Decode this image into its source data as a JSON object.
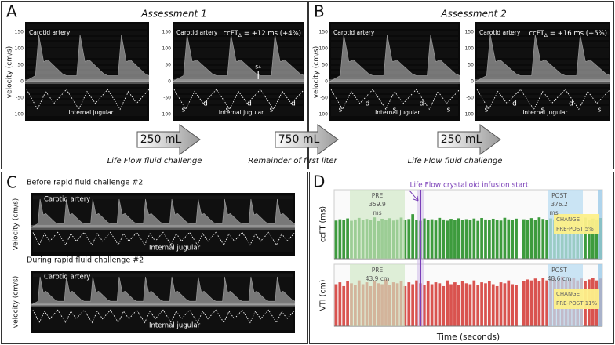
{
  "panel_a": {
    "letter": "A",
    "title": "Assessment 1",
    "left_image": {
      "vessel_top": "Carotid artery",
      "vessel_bottom": "Internal jugular"
    },
    "right_image": {
      "vessel_top": "Carotid artery",
      "vessel_bottom": "Internal jugular",
      "ccft": {
        "symbol": "ccFT",
        "subscript": "Δ",
        "change": "= +12 ms (+4%)"
      },
      "wave_labels": [
        "s",
        "d",
        "s",
        "d",
        "s",
        "d"
      ],
      "marker": "S4"
    }
  },
  "panel_b": {
    "letter": "B",
    "title": "Assessment 2",
    "left_image": {
      "vessel_top": "Carotid artery",
      "vessel_bottom": "Internal jugular",
      "wave_labels": [
        "s",
        "d",
        "s",
        "d",
        "s"
      ]
    },
    "right_image": {
      "vessel_top": "Carotid artery",
      "vessel_bottom": "Internal jugular",
      "ccft": {
        "symbol": "ccFT",
        "subscript": "Δ",
        "change": "= +16 ms (+5%)"
      },
      "wave_labels": [
        "s",
        "d",
        "s",
        "d",
        "s"
      ]
    }
  },
  "velocity_axis": {
    "label": "velocity (cm/s)",
    "ticks": [
      150,
      100,
      50,
      0,
      -50,
      -100
    ]
  },
  "steps": [
    {
      "volume": "250 mL",
      "caption": "Life Flow fluid challenge"
    },
    {
      "volume": "750 mL",
      "caption": "Remainder of first liter"
    },
    {
      "volume": "250 mL",
      "caption": "Life Flow fluid challenge"
    }
  ],
  "panel_c": {
    "letter": "C",
    "axis_label": "Velocity (cm/s)",
    "strips": [
      {
        "title": "Before rapid fluid challenge #2",
        "vessel_top": "Carotid artery",
        "vessel_bottom": "Internal jugular"
      },
      {
        "title": "During rapid fluid challenge #2",
        "vessel_top": "Carotid artery",
        "vessel_bottom": "Internal jugular"
      }
    ]
  },
  "panel_d": {
    "letter": "D",
    "event": "Life Flow crystalloid infusion start",
    "x_label": "Time (seconds)",
    "charts": [
      {
        "type": "bar",
        "y_label": "ccFT (ms)",
        "color": "#3d9b3d",
        "ylim": [
          0,
          650
        ],
        "values": [
          360,
          372,
          365,
          380,
          358,
          370,
          385,
          362,
          375,
          368,
          390,
          355,
          377,
          366,
          382,
          360,
          371,
          388,
          364,
          374,
          420,
          369,
          358,
          380,
          366,
          372,
          361,
          385,
          370,
          359,
          376,
          368,
          381,
          362,
          373,
          365,
          379,
          357,
          384,
          370,
          363,
          377,
          368,
          360,
          386,
          371,
          364,
          378,
          null,
          372,
          366,
          383,
          369,
          390,
          375,
          362,
          380,
          371,
          385,
          368,
          377,
          392,
          364,
          381,
          373,
          388,
          366,
          379,
          370,
          384
        ],
        "pre": {
          "label": "PRE",
          "value": "359.9",
          "unit": "ms"
        },
        "post": {
          "label": "POST",
          "value": "376.2",
          "unit": "ms"
        },
        "change": {
          "label": "CHANGE",
          "value": "PRE-POST 5%"
        }
      },
      {
        "type": "bar",
        "y_label": "VTI (cm)",
        "color": "#d9534f",
        "ylim": [
          0,
          65
        ],
        "values": [
          44,
          46,
          42,
          47,
          45,
          43,
          48,
          44,
          46,
          42,
          47,
          45,
          44,
          49,
          43,
          46,
          45,
          47,
          42,
          46,
          44,
          48,
          45,
          43,
          47,
          44,
          46,
          45,
          42,
          48,
          44,
          46,
          43,
          47,
          45,
          44,
          48,
          43,
          46,
          45,
          47,
          44,
          42,
          46,
          45,
          48,
          44,
          43,
          null,
          47,
          49,
          48,
          50,
          47,
          51,
          48,
          49,
          50,
          47,
          52,
          48,
          49,
          51,
          48,
          50,
          47,
          49,
          51,
          48,
          50
        ],
        "pre": {
          "label": "PRE",
          "value": "43.9 cm"
        },
        "post": {
          "label": "POST",
          "value": "48.6 cm"
        },
        "change": {
          "label": "CHANGE",
          "value": "PRE-POST 11%"
        }
      }
    ]
  }
}
